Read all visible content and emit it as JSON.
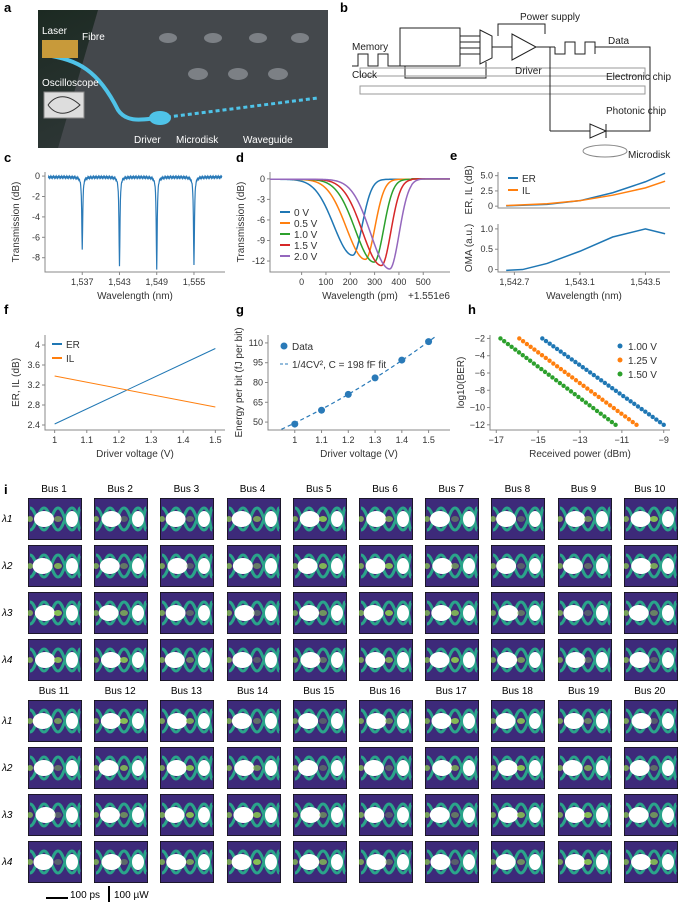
{
  "panel_labels": [
    "a",
    "b",
    "c",
    "d",
    "e",
    "f",
    "g",
    "h",
    "i"
  ],
  "panel_a": {
    "labels": {
      "laser": "Laser",
      "fibre": "Fibre",
      "oscilloscope": "Oscilloscope",
      "driver": "Driver",
      "microdisk": "Microdisk",
      "waveguide": "Waveguide"
    }
  },
  "panel_b": {
    "labels": {
      "power_supply": "Power supply",
      "memory": "Memory",
      "data": "Data",
      "clock": "Clock",
      "driver": "Driver",
      "electronic_chip": "Electronic chip",
      "photonic_chip": "Photonic chip",
      "microdisk": "Microdisk"
    }
  },
  "chart_data": [
    {
      "id": "c",
      "type": "line",
      "xlabel": "Wavelength (nm)",
      "ylabel": "Transmission (dB)",
      "xlim": [
        1531,
        1560
      ],
      "ylim": [
        -9.4,
        0.4
      ],
      "xticks": [
        1537,
        1543,
        1549,
        1555
      ],
      "xtick_labels": [
        "1,537",
        "1,543",
        "1,549",
        "1,555"
      ],
      "yticks": [
        0,
        -2,
        -4,
        -6,
        -8
      ],
      "dips": [
        {
          "x": 1537,
          "depth": -7.1
        },
        {
          "x": 1543,
          "depth": -8.8
        },
        {
          "x": 1549,
          "depth": -9.0
        },
        {
          "x": 1555,
          "depth": -8.6
        }
      ],
      "color": "#2a7ab8"
    },
    {
      "id": "d",
      "type": "line",
      "xlabel": "Wavelength (pm)",
      "offset_label": "+1.551e6",
      "ylabel": "Transmission (dB)",
      "xlim": [
        -130,
        610
      ],
      "ylim": [
        -13.6,
        1
      ],
      "xticks": [
        0,
        100,
        200,
        300,
        400,
        500
      ],
      "yticks": [
        0,
        -3,
        -6,
        -9,
        -12
      ],
      "series": [
        {
          "name": "0 V",
          "center": 210,
          "depth": -11.1,
          "color": "#1f77b4"
        },
        {
          "name": "0.5 V",
          "center": 262,
          "depth": -11.7,
          "color": "#ff7f0e"
        },
        {
          "name": "1.0 V",
          "center": 298,
          "depth": -12.1,
          "color": "#2ca02c"
        },
        {
          "name": "1.5 V",
          "center": 328,
          "depth": -12.6,
          "color": "#d62728"
        },
        {
          "name": "2.0 V",
          "center": 362,
          "depth": -13.1,
          "color": "#9467bd"
        }
      ]
    },
    {
      "id": "e",
      "type": "line",
      "xlabel": "Wavelength (nm)",
      "xlim": [
        1542.6,
        1543.65
      ],
      "xticks": [
        1542.7,
        1543.1,
        1543.5
      ],
      "xtick_labels": [
        "1,542.7",
        "1,543.1",
        "1,543.5"
      ],
      "top": {
        "ylabel": "ER, IL (dB)",
        "ylim": [
          -0.3,
          5.6
        ],
        "yticks": [
          0,
          2.5,
          5.0
        ],
        "ytick_labels": [
          "0",
          "2.5",
          "5.0"
        ],
        "series": [
          {
            "name": "ER",
            "x": [
              1542.65,
              1542.9,
              1543.1,
              1543.3,
              1543.5,
              1543.62
            ],
            "y": [
              0.05,
              0.3,
              0.9,
              2.2,
              4.0,
              5.4
            ],
            "color": "#1f77b4"
          },
          {
            "name": "IL",
            "x": [
              1542.65,
              1542.9,
              1543.1,
              1543.3,
              1543.5,
              1543.62
            ],
            "y": [
              0.1,
              0.4,
              0.9,
              1.8,
              3.0,
              4.1
            ],
            "color": "#ff7f0e"
          }
        ]
      },
      "bottom": {
        "ylabel": "OMA (a.u.)",
        "ylim": [
          -0.06,
          1.12
        ],
        "yticks": [
          0,
          0.5,
          1.0
        ],
        "ytick_labels": [
          "0",
          "0.5",
          "1.0"
        ],
        "series": [
          {
            "name": "OMA",
            "x": [
              1542.65,
              1542.75,
              1542.9,
              1543.1,
              1543.3,
              1543.5,
              1543.62
            ],
            "y": [
              -0.02,
              0.0,
              0.15,
              0.45,
              0.8,
              1.0,
              0.88
            ],
            "color": "#1f77b4"
          }
        ]
      }
    },
    {
      "id": "f",
      "type": "line",
      "xlabel": "Driver voltage (V)",
      "ylabel": "ER, IL (dB)",
      "xlim": [
        0.97,
        1.53
      ],
      "ylim": [
        2.3,
        4.2
      ],
      "xticks": [
        1.0,
        1.1,
        1.2,
        1.3,
        1.4,
        1.5
      ],
      "yticks": [
        2.4,
        2.8,
        3.2,
        3.6,
        4.0
      ],
      "series": [
        {
          "name": "ER",
          "x": [
            1.0,
            1.5
          ],
          "y": [
            2.42,
            3.93
          ],
          "color": "#1f77b4"
        },
        {
          "name": "IL",
          "x": [
            1.0,
            1.5
          ],
          "y": [
            3.38,
            2.76
          ],
          "color": "#ff7f0e"
        }
      ]
    },
    {
      "id": "g",
      "type": "scatter",
      "xlabel": "Driver voltage (V)",
      "ylabel": "Energy per bit (fJ per bit)",
      "xlim": [
        0.9,
        1.58
      ],
      "ylim": [
        44,
        116
      ],
      "xticks": [
        1.0,
        1.1,
        1.2,
        1.3,
        1.4,
        1.5
      ],
      "yticks": [
        50,
        65,
        80,
        95,
        110
      ],
      "data": {
        "name": "Data",
        "x": [
          1.0,
          1.1,
          1.2,
          1.3,
          1.4,
          1.5
        ],
        "y": [
          48.5,
          59,
          71,
          83.5,
          97,
          111
        ]
      },
      "fit": {
        "name": "1/4CV², C = 198 fF fit",
        "C_fF": 198
      },
      "color": "#2a7ab8"
    },
    {
      "id": "h",
      "type": "scatter",
      "xlabel": "Received power (dBm)",
      "ylabel": "log10(BER)",
      "xlim": [
        -17.3,
        -8.7
      ],
      "ylim": [
        -12.6,
        -1.6
      ],
      "xticks": [
        -17,
        -15,
        -13,
        -11,
        -9
      ],
      "xtick_labels": [
        "−17",
        "−15",
        "−13",
        "−11",
        "−9"
      ],
      "yticks": [
        -2,
        -4,
        -6,
        -8,
        -10,
        -12
      ],
      "ytick_labels": [
        "−2",
        "−4",
        "−6",
        "−8",
        "−10",
        "−12"
      ],
      "series": [
        {
          "name": "1.00 V",
          "start": [
            -14.8,
            -2
          ],
          "end": [
            -9.0,
            -12
          ],
          "n": 34,
          "color": "#1f77b4"
        },
        {
          "name": "1.25 V",
          "start": [
            -15.9,
            -2
          ],
          "end": [
            -10.3,
            -12
          ],
          "n": 32,
          "color": "#ff7f0e"
        },
        {
          "name": "1.50 V",
          "start": [
            -16.8,
            -2
          ],
          "end": [
            -11.3,
            -12
          ],
          "n": 32,
          "color": "#2ca02c"
        }
      ]
    }
  ],
  "panel_i": {
    "bus_groups": [
      [
        "Bus 1",
        "Bus 2",
        "Bus 3",
        "Bus 4",
        "Bus 5",
        "Bus 6",
        "Bus 7",
        "Bus 8",
        "Bus 9",
        "Bus 10"
      ],
      [
        "Bus 11",
        "Bus 12",
        "Bus 13",
        "Bus 14",
        "Bus 15",
        "Bus 16",
        "Bus 17",
        "Bus 18",
        "Bus 19",
        "Bus 20"
      ]
    ],
    "wavelengths": [
      "λ1",
      "λ2",
      "λ3",
      "λ4"
    ],
    "scale_time": "100 ps",
    "scale_power": "100 µW"
  }
}
